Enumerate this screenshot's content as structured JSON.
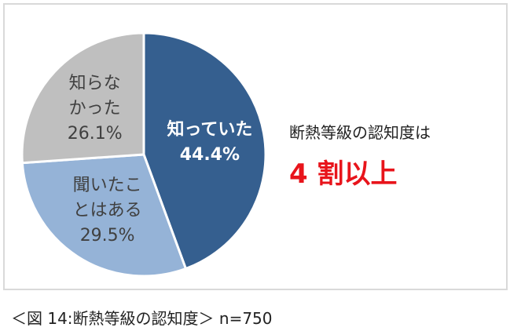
{
  "chart_data": {
    "type": "pie",
    "categories": [
      "知っていた",
      "聞いたことはある",
      "知らなかった"
    ],
    "values": [
      44.4,
      29.5,
      26.1
    ],
    "value_labels": [
      "44.4%",
      "29.5%",
      "26.1%"
    ],
    "colors": [
      "#355f8f",
      "#95b3d7",
      "#bfbfbf"
    ],
    "annotation": "断熱等級の認知度は",
    "headline": "4 割以上",
    "caption": "＜図 14:断熱等級の認知度＞ n=750"
  }
}
